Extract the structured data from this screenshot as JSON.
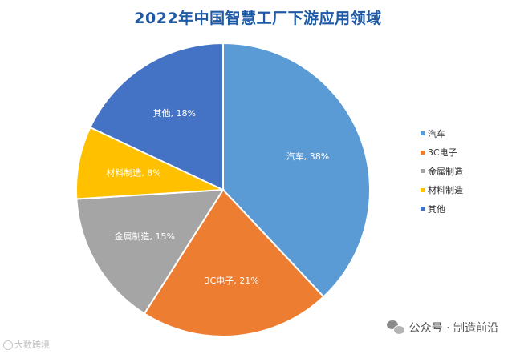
{
  "chart_data": {
    "type": "pie",
    "title": "2022年中国智慧工厂下游应用领域",
    "legend_position": "right",
    "slices": [
      {
        "name": "汽车",
        "value": 38,
        "label": "汽车, 38%",
        "color": "#5b9bd5"
      },
      {
        "name": "3C电子",
        "value": 21,
        "label": "3C电子, 21%",
        "color": "#ed7d31"
      },
      {
        "name": "金属制造",
        "value": 15,
        "label": "金属制造, 15%",
        "color": "#a5a5a5"
      },
      {
        "name": "材料制造",
        "value": 8,
        "label": "材料制造, 8%",
        "color": "#ffc000"
      },
      {
        "name": "其他",
        "value": 18,
        "label": "其他, 18%",
        "color": "#4472c4"
      }
    ]
  },
  "watermark_left": {
    "text": "大数跨境"
  },
  "watermark_right": {
    "icon": "wechat-icon",
    "text": "公众号 · 制造前沿"
  }
}
